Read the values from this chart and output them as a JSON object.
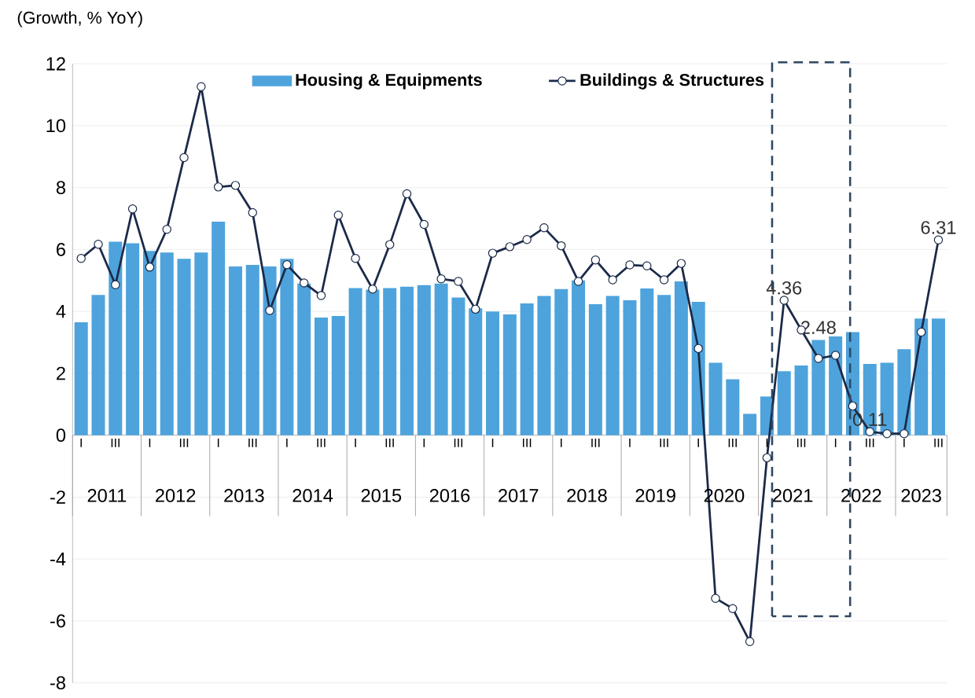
{
  "chart_data": {
    "type": "bar",
    "ylabel": "(Growth, % YoY)",
    "categories": [
      "I",
      null,
      "III",
      null,
      "I",
      null,
      "III",
      null,
      "I",
      null,
      "III",
      null,
      "I",
      null,
      "III",
      null,
      "I",
      null,
      "III",
      null,
      "I",
      null,
      "III",
      null,
      "I",
      null,
      "III",
      null,
      "I",
      null,
      "III",
      null,
      "I",
      null,
      "III",
      null,
      "I",
      null,
      "III",
      null,
      "I",
      null,
      "III",
      null,
      "I",
      null,
      "III",
      null,
      "I",
      null,
      "III"
    ],
    "annotations": [
      "2011",
      "2012",
      "2013",
      "2014",
      "2015",
      "2016",
      "2017",
      "2018",
      "2019",
      "2020",
      "2021",
      "2022",
      "2023"
    ],
    "series": [
      {
        "name": "Housing & Equipments",
        "color": "#4ea3dc",
        "values": [
          3.65,
          4.53,
          6.25,
          6.2,
          5.95,
          5.9,
          5.7,
          5.9,
          6.9,
          5.45,
          5.5,
          5.45,
          5.7,
          4.9,
          3.8,
          3.85,
          4.75,
          4.7,
          4.75,
          4.8,
          4.85,
          4.9,
          4.45,
          4.1,
          4.0,
          3.9,
          4.26,
          4.5,
          4.72,
          5.0,
          4.23,
          4.5,
          4.36,
          4.74,
          4.53,
          4.97,
          4.31,
          2.34,
          1.81,
          0.69,
          1.25,
          2.07,
          2.25,
          3.08,
          3.19,
          3.33,
          2.3,
          2.34,
          2.78,
          3.77,
          3.77
        ]
      },
      {
        "name": "Buildings & Structures",
        "type": "line",
        "color": "#1b2a48",
        "marker": "circle",
        "values": [
          5.71,
          6.17,
          4.86,
          7.31,
          5.43,
          6.65,
          8.97,
          11.26,
          8.02,
          8.07,
          7.19,
          4.03,
          5.51,
          4.92,
          4.51,
          7.11,
          5.71,
          4.72,
          6.16,
          7.8,
          6.81,
          5.05,
          4.97,
          4.07,
          5.88,
          6.09,
          6.32,
          6.7,
          6.12,
          4.97,
          5.66,
          5.02,
          5.5,
          5.47,
          5.02,
          5.55,
          2.8,
          -5.27,
          -5.6,
          -6.67,
          -0.73,
          4.36,
          3.4,
          2.48,
          2.58,
          0.94,
          0.11,
          0.05,
          0.05,
          3.33,
          6.31
        ],
        "value_labels": [
          null,
          null,
          null,
          null,
          null,
          null,
          null,
          null,
          null,
          null,
          null,
          null,
          null,
          null,
          null,
          null,
          null,
          null,
          null,
          null,
          null,
          null,
          null,
          null,
          null,
          null,
          null,
          null,
          null,
          null,
          null,
          null,
          null,
          null,
          null,
          null,
          null,
          null,
          null,
          null,
          null,
          "4.36",
          null,
          "2.48",
          null,
          null,
          "0.11",
          null,
          null,
          null,
          "6.31"
        ]
      }
    ],
    "ylim": [
      -8,
      12
    ],
    "yticks": [
      -8,
      -6,
      -4,
      -2,
      0,
      2,
      4,
      6,
      8,
      10,
      12
    ],
    "grid": "y",
    "legend": "top"
  }
}
